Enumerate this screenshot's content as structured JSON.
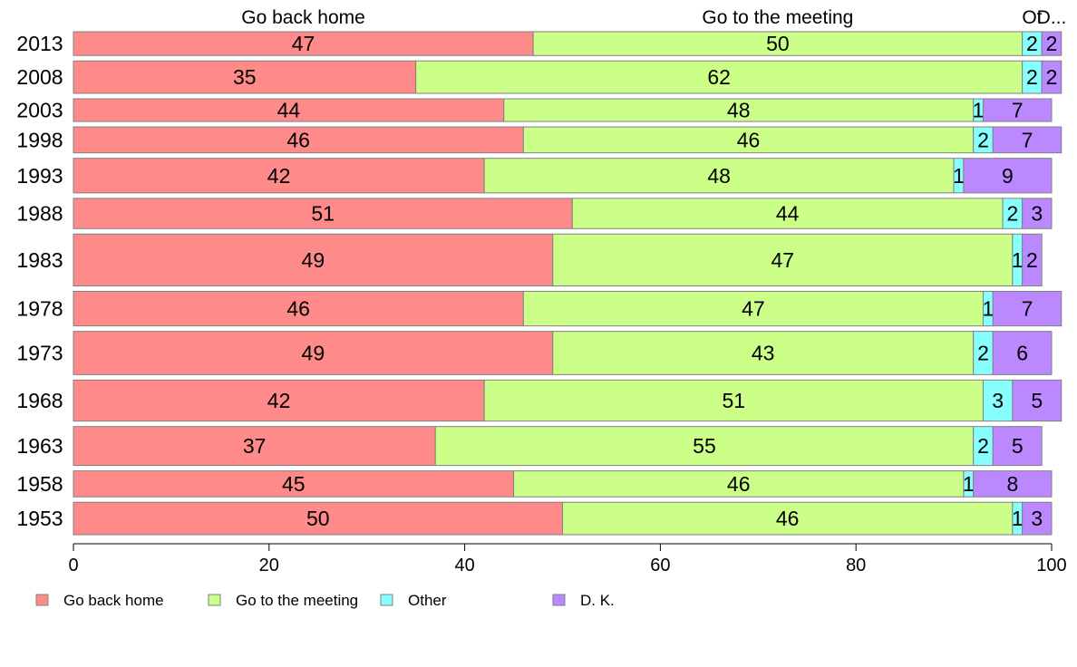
{
  "chart_data": {
    "type": "bar",
    "orientation": "horizontal",
    "stacked": true,
    "categories": [
      "2013",
      "2008",
      "2003",
      "1998",
      "1993",
      "1988",
      "1983",
      "1978",
      "1973",
      "1968",
      "1963",
      "1958",
      "1953"
    ],
    "series": [
      {
        "name": "Go back home",
        "color": "#ff8a8a",
        "values": [
          47,
          35,
          44,
          46,
          42,
          51,
          49,
          46,
          49,
          42,
          37,
          45,
          50
        ]
      },
      {
        "name": "Go to the meeting",
        "color": "#ccff88",
        "values": [
          50,
          62,
          48,
          46,
          48,
          44,
          47,
          47,
          43,
          51,
          55,
          46,
          46
        ]
      },
      {
        "name": "Other",
        "color": "#88ffff",
        "values": [
          2,
          2,
          1,
          2,
          1,
          2,
          1,
          1,
          2,
          3,
          2,
          1,
          1
        ]
      },
      {
        "name": "D. K.",
        "color": "#bb88ff",
        "values": [
          2,
          2,
          7,
          7,
          9,
          3,
          2,
          7,
          6,
          5,
          5,
          8,
          3
        ]
      }
    ],
    "bar_weights": [
      22,
      30,
      21,
      24,
      32,
      28,
      48,
      32,
      40,
      38,
      36,
      24,
      30
    ],
    "column_labels": [
      "Go back home",
      "Go to the meeting",
      "Ot",
      "D..."
    ],
    "xlim": [
      0,
      100
    ],
    "xticks": [
      0,
      20,
      40,
      60,
      80,
      100
    ],
    "legend_position": "bottom-left",
    "grid": false
  }
}
